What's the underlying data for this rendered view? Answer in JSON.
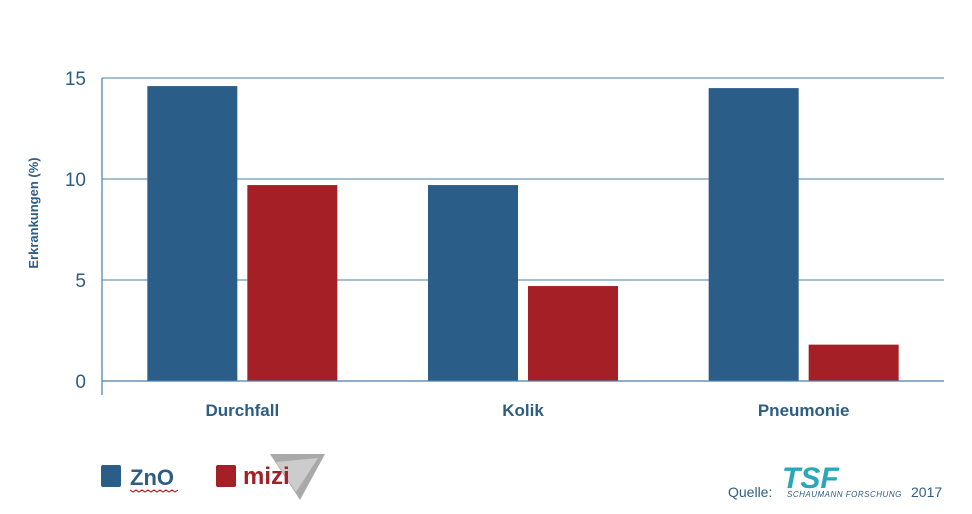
{
  "chart_data": {
    "type": "bar",
    "ylabel": "Erkrankungen (%)",
    "ylim": [
      0,
      15
    ],
    "yticks": [
      0,
      5,
      10,
      15
    ],
    "categories": [
      "Durchfall",
      "Kolik",
      "Pneumonie"
    ],
    "series": [
      {
        "name": "ZnO",
        "values": [
          14.6,
          9.7,
          14.5
        ],
        "color": "#2b5d89"
      },
      {
        "name": "mizi",
        "values": [
          9.7,
          4.7,
          1.8
        ],
        "color": "#a41f26"
      }
    ],
    "grid": true,
    "legend_position": "bottom-left"
  },
  "legend": {
    "zno_label": "ZnO",
    "mizi_label": "mizi"
  },
  "source": {
    "prefix": "Quelle:",
    "logo_text": "TSF",
    "org_name": "SCHAUMANN FORSCHUNG",
    "year": "2017"
  },
  "colors": {
    "axis": "#2e5d83",
    "grid": "#4a7ea6",
    "logo": "#2aa7b8"
  }
}
